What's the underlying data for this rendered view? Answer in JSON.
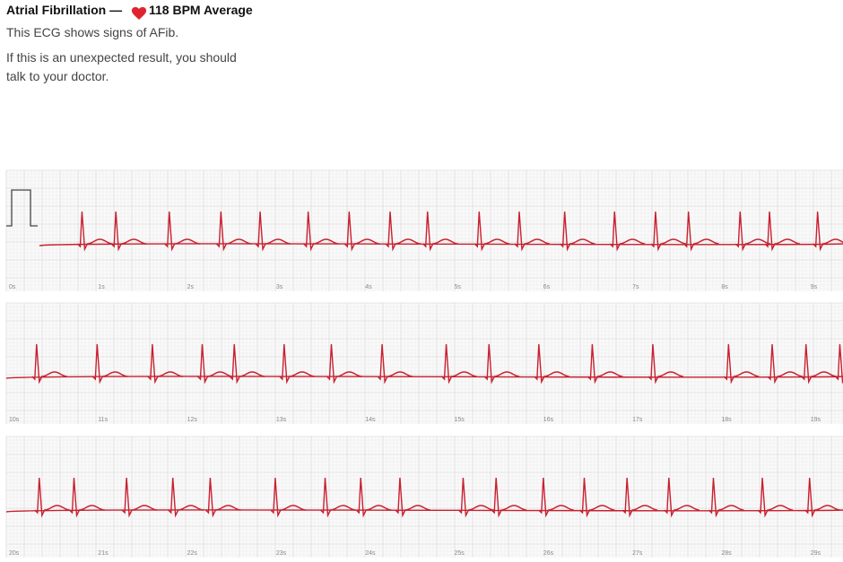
{
  "header": {
    "title": "Atrial Fibrillation —",
    "bpm": "118 BPM Average"
  },
  "message": [
    "This ECG shows signs of AFib.",
    "If this is an unexpected result, you should",
    "talk to your doctor."
  ],
  "strips": [
    {
      "labels": [
        "0s",
        "1s",
        "2s",
        "3s",
        "4s",
        "5s",
        "6s",
        "7s",
        "8s",
        "9s"
      ],
      "beats": [
        0.82,
        1.2,
        1.8,
        2.38,
        2.82,
        3.36,
        3.82,
        4.28,
        4.7,
        5.28,
        5.73,
        6.24,
        6.8,
        7.26,
        7.63,
        8.21,
        8.54,
        9.08
      ]
    },
    {
      "labels": [
        "10s",
        "11s",
        "12s",
        "13s",
        "14s",
        "15s",
        "16s",
        "17s",
        "18s",
        "19s"
      ],
      "beats": [
        0.31,
        0.99,
        1.61,
        2.17,
        2.53,
        3.09,
        3.62,
        4.19,
        4.91,
        5.39,
        5.95,
        6.55,
        7.23,
        8.08,
        8.57,
        8.95,
        9.33
      ]
    },
    {
      "labels": [
        "20s",
        "21s",
        "22s",
        "23s",
        "24s",
        "25s",
        "26s",
        "27s",
        "28s",
        "29s"
      ],
      "beats": [
        0.34,
        0.73,
        1.32,
        1.84,
        2.26,
        2.99,
        3.55,
        3.95,
        4.39,
        5.1,
        5.47,
        6.0,
        6.46,
        6.94,
        7.41,
        7.91,
        8.46,
        8.99
      ]
    }
  ]
}
